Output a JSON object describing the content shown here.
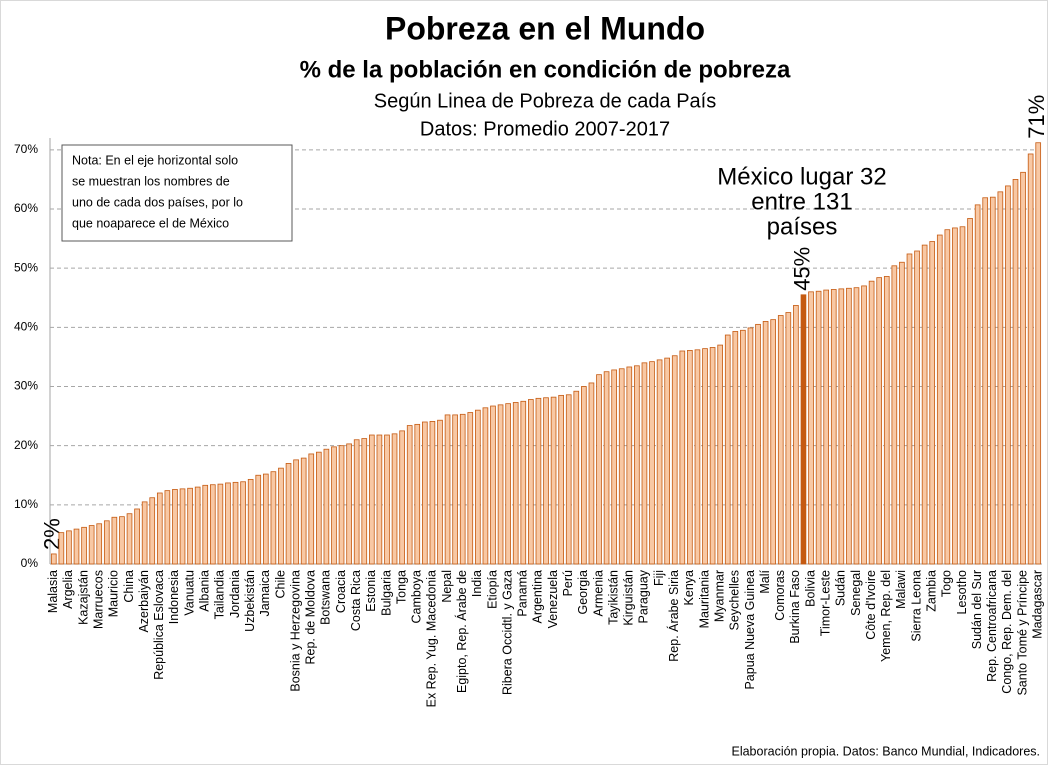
{
  "chart_data": {
    "type": "bar",
    "title": "Pobreza en el Mundo",
    "subtitles": [
      "% de la población en condición de pobreza",
      "Según Linea de Pobreza de cada País",
      "Datos: Promedio 2007-2017"
    ],
    "note": [
      "Nota: En el eje horizontal solo",
      "se muestran los nombres de",
      "uno de cada dos países, por lo",
      "que noaparece el de México"
    ],
    "annotation": [
      "México lugar 32",
      "entre 131",
      "países"
    ],
    "source": "Elaboración propia. Datos: Banco Mundial, Indicadores.",
    "categories": [
      "Malasia",
      null,
      "Argelia",
      null,
      "Kazajstán",
      null,
      "Marruecos",
      null,
      "Mauricio",
      null,
      "China",
      null,
      "Azerbaiyán",
      null,
      "República Eslovaca",
      null,
      "Indonesia",
      null,
      "Vanuatu",
      null,
      "Albania",
      null,
      "Tailandia",
      null,
      "Jordania",
      null,
      "Uzbekistán",
      null,
      "Jamaica",
      null,
      "Chile",
      null,
      "Bosnia y Herzegovina",
      null,
      "Rep. de Moldova",
      null,
      "Botswana",
      null,
      "Croacia",
      null,
      "Costa Rica",
      null,
      "Estonia",
      null,
      "Bulgaria",
      null,
      "Tonga",
      null,
      "Camboya",
      null,
      "Ex Rep. Yug. Macedonia",
      null,
      "Nepal",
      null,
      "Egipto, Rep. Árabe de",
      null,
      "India",
      null,
      "Etiopía",
      null,
      "Ribera Occidtl. y Gaza",
      null,
      "Panamá",
      null,
      "Argentina",
      null,
      "Venezuela",
      null,
      "Perú",
      null,
      "Georgia",
      null,
      "Armenia",
      null,
      "Tayikistán",
      null,
      "Kirguistán",
      null,
      "Paraguay",
      null,
      "Fiji",
      null,
      "Rep. Árabe Siria",
      null,
      "Kenya",
      null,
      "Mauritania",
      null,
      "Myanmar",
      null,
      "Seychelles",
      null,
      "Papua Nueva Guinea",
      null,
      "Malí",
      null,
      "Comoras",
      null,
      "Burkina Faso",
      null,
      "Bolivia",
      null,
      "Timor-Leste",
      null,
      "Sudán",
      null,
      "Senegal",
      null,
      "Côte d'Ivoire",
      null,
      "Yemen, Rep. del",
      null,
      "Malawi",
      null,
      "Sierra Leona",
      null,
      "Zambia",
      null,
      "Togo",
      null,
      "Lesotho",
      null,
      "Sudán del Sur",
      null,
      "Rep. Centroafricana",
      null,
      "Congo, Rep. Dem. del",
      null,
      "Santo Tomé y Príncipe",
      null,
      "Madagascar"
    ],
    "values": [
      1.7,
      5.3,
      5.6,
      5.9,
      6.2,
      6.5,
      6.8,
      7.3,
      7.9,
      8.0,
      8.5,
      9.3,
      10.5,
      11.2,
      12.0,
      12.4,
      12.6,
      12.7,
      12.8,
      13.0,
      13.3,
      13.4,
      13.5,
      13.7,
      13.8,
      13.9,
      14.3,
      15.0,
      15.2,
      15.6,
      16.2,
      17.0,
      17.6,
      17.9,
      18.6,
      18.9,
      19.4,
      19.8,
      20.0,
      20.3,
      21.0,
      21.2,
      21.8,
      21.8,
      21.8,
      22.0,
      22.5,
      23.4,
      23.6,
      24.0,
      24.1,
      24.3,
      25.2,
      25.2,
      25.3,
      25.6,
      26.0,
      26.4,
      26.7,
      26.9,
      27.1,
      27.3,
      27.5,
      27.8,
      28.0,
      28.1,
      28.2,
      28.5,
      28.6,
      29.2,
      30.0,
      30.6,
      32.0,
      32.5,
      32.8,
      33.0,
      33.3,
      33.5,
      34.0,
      34.2,
      34.5,
      34.8,
      35.2,
      36.0,
      36.1,
      36.2,
      36.4,
      36.6,
      37.0,
      38.7,
      39.3,
      39.5,
      39.9,
      40.5,
      41.0,
      41.3,
      42.0,
      42.5,
      43.7,
      45.5,
      46.0,
      46.1,
      46.3,
      46.4,
      46.5,
      46.6,
      46.7,
      47.0,
      47.8,
      48.4,
      48.6,
      50.4,
      51.0,
      52.4,
      52.9,
      53.9,
      54.5,
      55.6,
      56.5,
      56.8,
      57.0,
      58.4,
      60.7,
      61.9,
      62.0,
      62.9,
      63.9,
      65.0,
      66.2,
      69.3,
      71.2
    ],
    "value_labels": [
      "2%",
      null,
      null,
      null,
      null,
      null,
      null,
      null,
      null,
      null,
      null,
      null,
      null,
      null,
      null,
      null,
      null,
      null,
      null,
      null,
      null,
      null,
      null,
      null,
      null,
      null,
      null,
      null,
      null,
      null,
      null,
      null,
      null,
      null,
      null,
      null,
      null,
      null,
      null,
      null,
      null,
      null,
      null,
      null,
      null,
      null,
      null,
      null,
      null,
      null,
      null,
      null,
      null,
      null,
      null,
      null,
      null,
      null,
      null,
      null,
      null,
      null,
      null,
      null,
      null,
      null,
      null,
      null,
      null,
      null,
      null,
      null,
      null,
      null,
      null,
      null,
      null,
      null,
      null,
      null,
      null,
      null,
      null,
      null,
      null,
      null,
      null,
      null,
      null,
      null,
      null,
      null,
      null,
      null,
      null,
      null,
      null,
      null,
      null,
      "45%",
      null,
      null,
      null,
      null,
      null,
      null,
      null,
      null,
      null,
      null,
      null,
      null,
      null,
      null,
      null,
      null,
      null,
      null,
      null,
      null,
      null,
      null,
      null,
      null,
      null,
      null,
      null,
      null,
      null,
      null,
      "71%"
    ],
    "colors": [
      "#f8c8a4",
      "#f8c8a4",
      "#f8c8a4",
      "#f8c8a4",
      "#f8c8a4",
      "#f8c8a4",
      "#f8c8a4",
      "#f8c8a4",
      "#f8c8a4",
      "#f8c8a4",
      "#f8c8a4",
      "#f8c8a4",
      "#f8c8a4",
      "#f8c8a4",
      "#f8c8a4",
      "#f8c8a4",
      "#f8c8a4",
      "#f8c8a4",
      "#f8c8a4",
      "#f8c8a4",
      "#f8c8a4",
      "#f8c8a4",
      "#f8c8a4",
      "#f8c8a4",
      "#f8c8a4",
      "#f8c8a4",
      "#f8c8a4",
      "#f8c8a4",
      "#f8c8a4",
      "#f8c8a4",
      "#f8c8a4",
      "#f8c8a4",
      "#f8c8a4",
      "#f8c8a4",
      "#f8c8a4",
      "#f8c8a4",
      "#f8c8a4",
      "#f8c8a4",
      "#f8c8a4",
      "#f8c8a4",
      "#f8c8a4",
      "#f8c8a4",
      "#f8c8a4",
      "#f8c8a4",
      "#f8c8a4",
      "#f8c8a4",
      "#f8c8a4",
      "#f8c8a4",
      "#f8c8a4",
      "#f8c8a4",
      "#f8c8a4",
      "#f8c8a4",
      "#f8c8a4",
      "#f8c8a4",
      "#f8c8a4",
      "#f8c8a4",
      "#f8c8a4",
      "#f8c8a4",
      "#f8c8a4",
      "#f8c8a4",
      "#f8c8a4",
      "#f8c8a4",
      "#f8c8a4",
      "#f8c8a4",
      "#f8c8a4",
      "#f8c8a4",
      "#f8c8a4",
      "#f8c8a4",
      "#f8c8a4",
      "#f8c8a4",
      "#f8c8a4",
      "#f8c8a4",
      "#f8c8a4",
      "#f8c8a4",
      "#f8c8a4",
      "#f8c8a4",
      "#f8c8a4",
      "#f8c8a4",
      "#f8c8a4",
      "#f8c8a4",
      "#f8c8a4",
      "#f8c8a4",
      "#f8c8a4",
      "#f8c8a4",
      "#f8c8a4",
      "#f8c8a4",
      "#f8c8a4",
      "#f8c8a4",
      "#f8c8a4",
      "#f8c8a4",
      "#f8c8a4",
      "#f8c8a4",
      "#f8c8a4",
      "#f8c8a4",
      "#f8c8a4",
      "#f8c8a4",
      "#f8c8a4",
      "#f8c8a4",
      "#f8c8a4",
      "#c55a11",
      "#f8c8a4",
      "#f8c8a4",
      "#f8c8a4",
      "#f8c8a4",
      "#f8c8a4",
      "#f8c8a4",
      "#f8c8a4",
      "#f8c8a4",
      "#f8c8a4",
      "#f8c8a4",
      "#f8c8a4",
      "#f8c8a4",
      "#f8c8a4",
      "#f8c8a4",
      "#f8c8a4",
      "#f8c8a4",
      "#f8c8a4",
      "#f8c8a4",
      "#f8c8a4",
      "#f8c8a4",
      "#f8c8a4",
      "#f8c8a4",
      "#f8c8a4",
      "#f8c8a4",
      "#f8c8a4",
      "#f8c8a4",
      "#f8c8a4",
      "#f8c8a4",
      "#f8c8a4",
      "#f8c8a4",
      "#f8c8a4"
    ],
    "edge_color": "#c55a11",
    "ylim": [
      0,
      72
    ],
    "yticks": [
      {
        "value": 0,
        "label": "0%"
      },
      {
        "value": 10,
        "label": "10%"
      },
      {
        "value": 20,
        "label": "20%"
      },
      {
        "value": 30,
        "label": "30%"
      },
      {
        "value": 40,
        "label": "40%"
      },
      {
        "value": 50,
        "label": "50%"
      },
      {
        "value": 60,
        "label": "60%"
      },
      {
        "value": 70,
        "label": "70%"
      }
    ],
    "grid": true
  }
}
